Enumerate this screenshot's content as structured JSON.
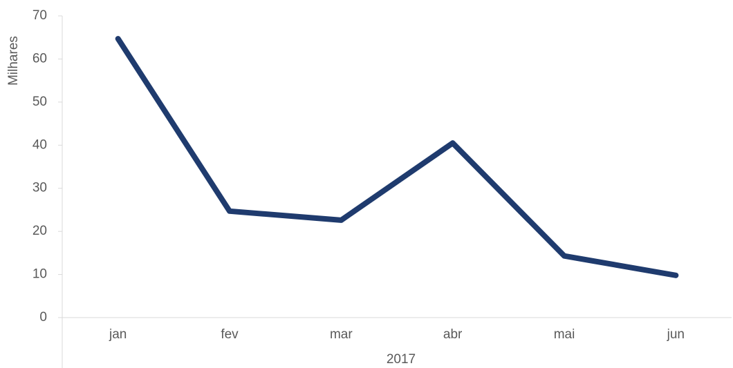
{
  "chart_data": {
    "type": "line",
    "y_label": "Milhares",
    "group_label": "2017",
    "categories": [
      "jan",
      "fev",
      "mar",
      "abr",
      "mai",
      "jun"
    ],
    "series": [
      {
        "name": "",
        "color": "#1f3b6e",
        "values": [
          64.7,
          24.7,
          22.6,
          40.5,
          14.3,
          9.8
        ]
      }
    ],
    "ylim": [
      0,
      70
    ],
    "yticks": [
      0,
      10,
      20,
      30,
      40,
      50,
      60,
      70
    ],
    "grid": false
  }
}
